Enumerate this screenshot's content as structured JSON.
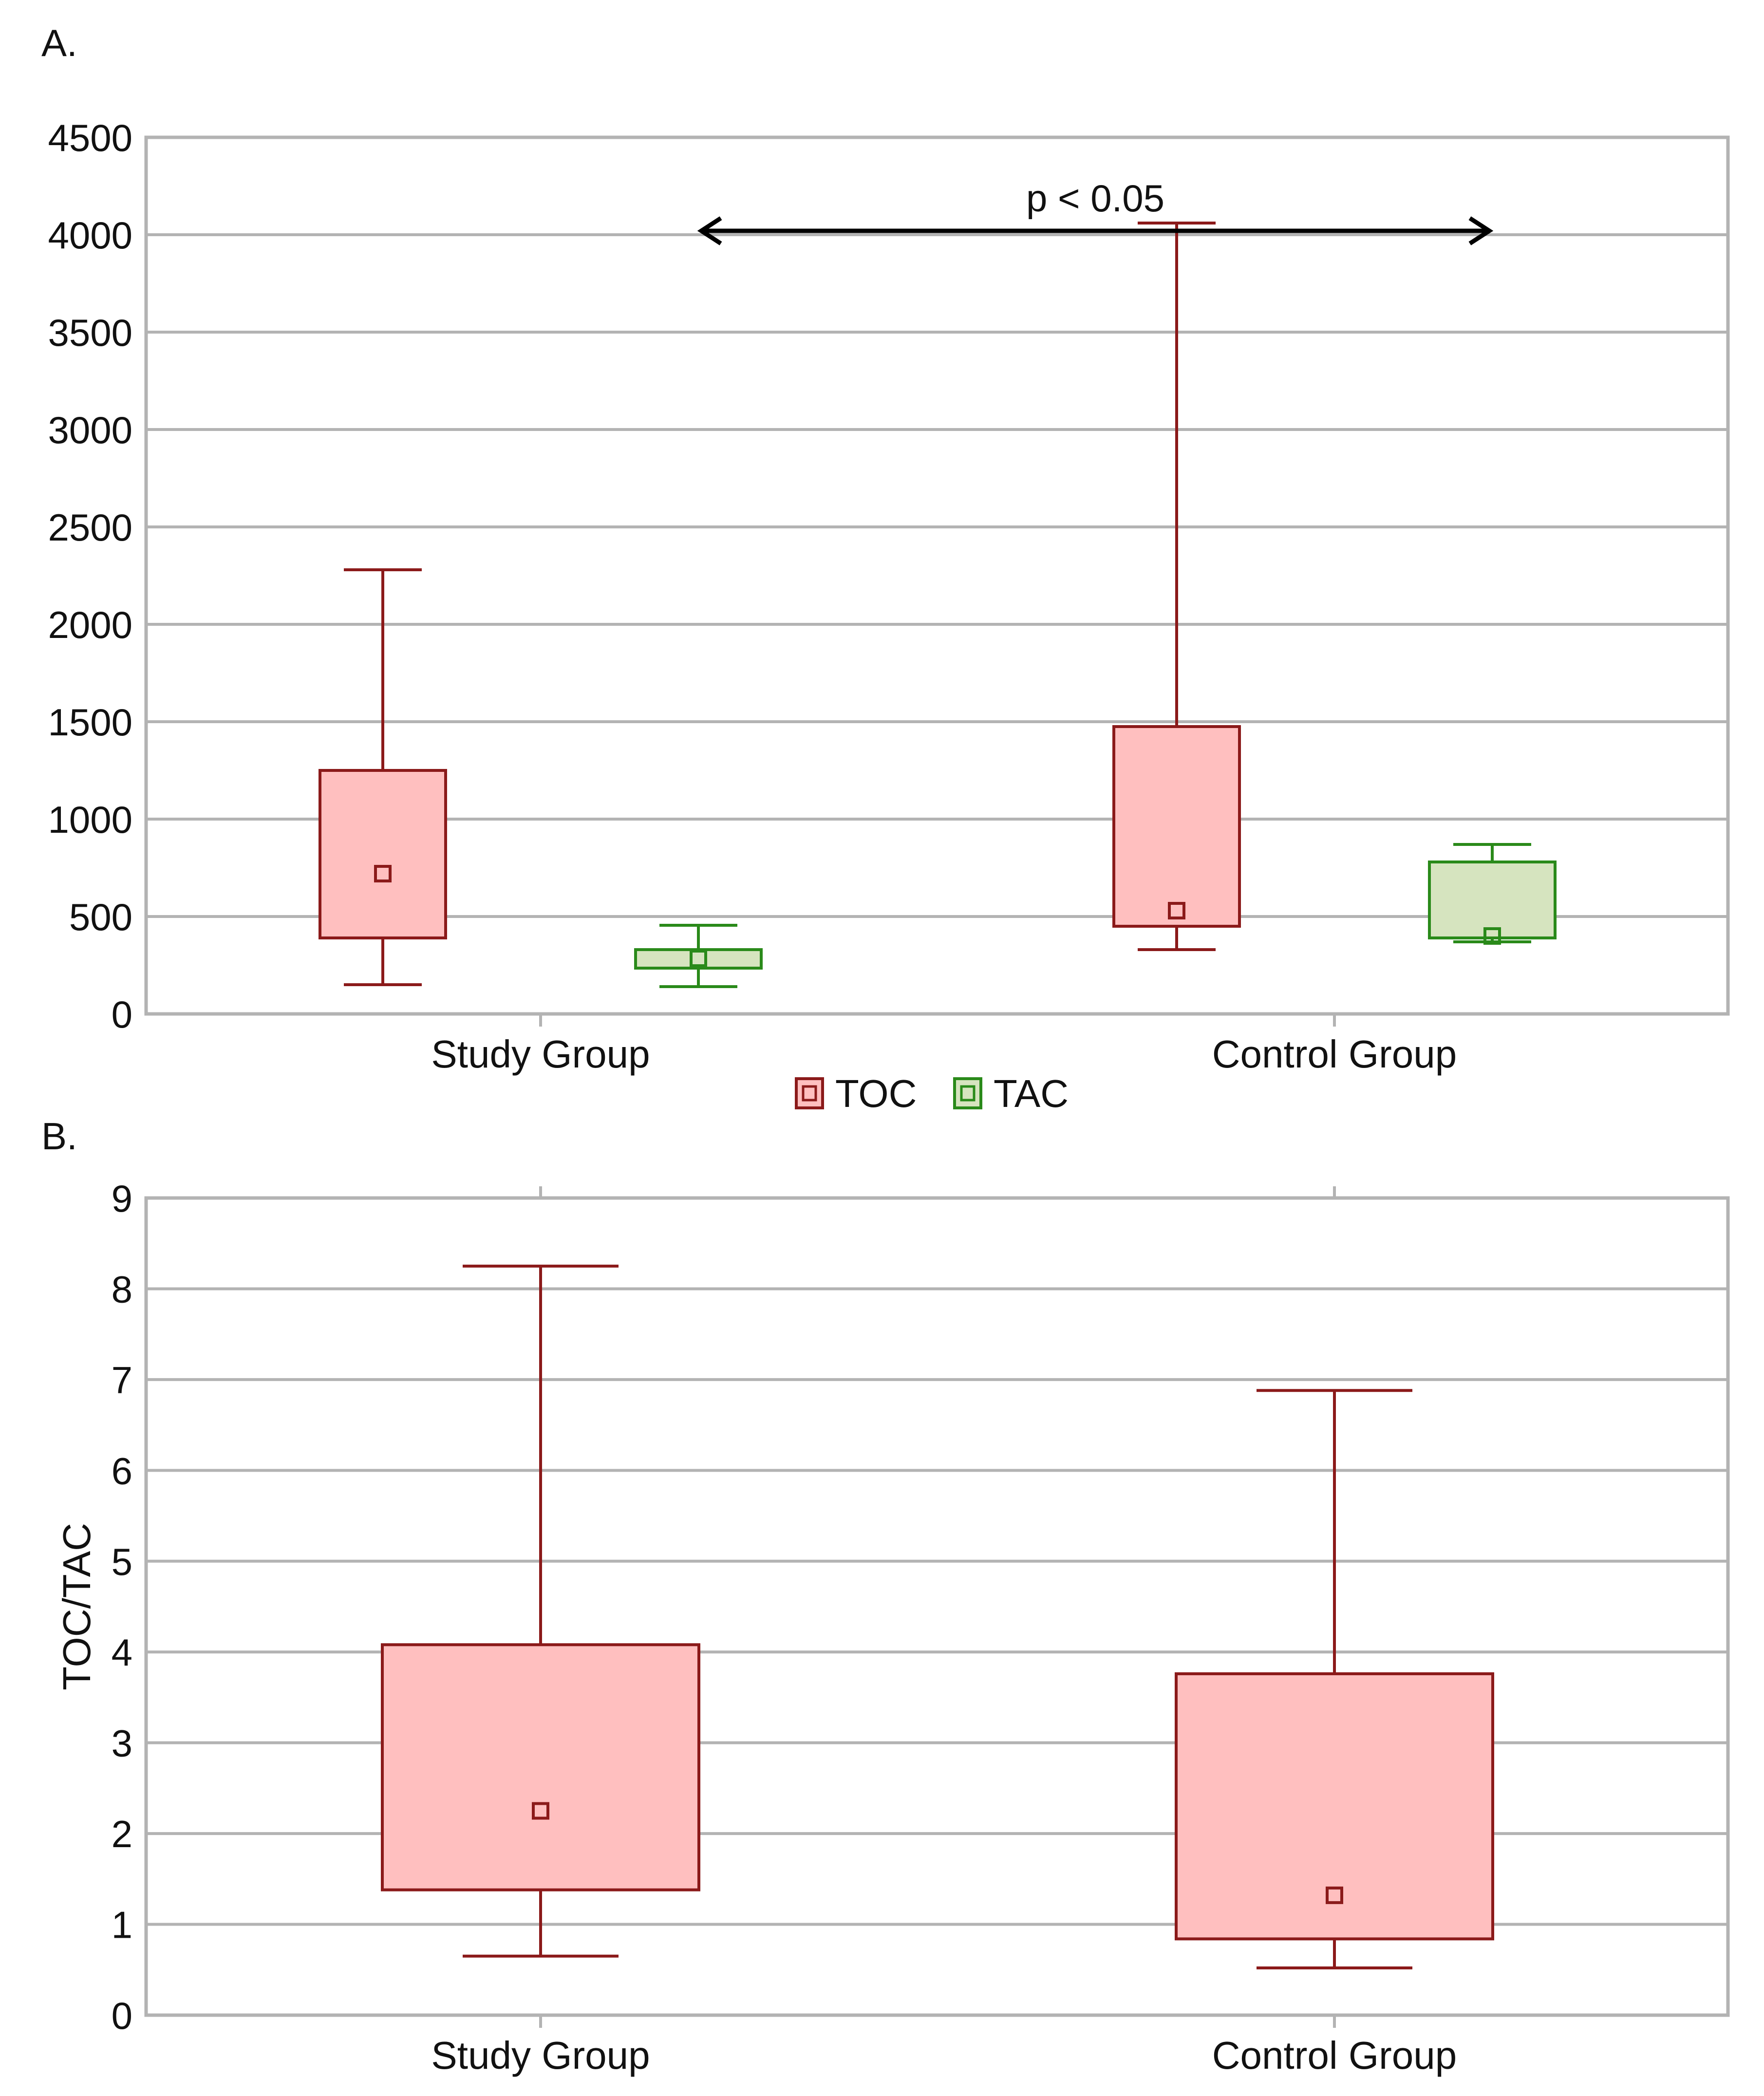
{
  "chart_data": [
    {
      "id": "A",
      "type": "box",
      "panel_label": "A.",
      "title": "",
      "xlabel": "",
      "ylabel": "",
      "ylim": [
        0,
        4500
      ],
      "yticks": [
        0,
        500,
        1000,
        1500,
        2000,
        2500,
        3000,
        3500,
        4000,
        4500
      ],
      "grid": true,
      "categories": [
        "Study Group",
        "Control Group"
      ],
      "series": [
        {
          "name": "TOC",
          "stroke": "#8b1a1a",
          "fill": "#ffbfbf",
          "boxes": [
            {
              "category": "Study Group",
              "whisker_low": 150,
              "q1": 390,
              "median": 720,
              "q3": 1250,
              "whisker_high": 2280
            },
            {
              "category": "Control Group",
              "whisker_low": 330,
              "q1": 450,
              "median": 530,
              "q3": 1475,
              "whisker_high": 4060
            }
          ]
        },
        {
          "name": "TAC",
          "stroke": "#2a8a1a",
          "fill": "#d6e4bf",
          "boxes": [
            {
              "category": "Study Group",
              "whisker_low": 140,
              "q1": 235,
              "median": 285,
              "q3": 330,
              "whisker_high": 455
            },
            {
              "category": "Control Group",
              "whisker_low": 370,
              "q1": 390,
              "median": 400,
              "q3": 780,
              "whisker_high": 870
            }
          ]
        }
      ],
      "legend": {
        "position": "bottom-center",
        "entries": [
          "TOC",
          "TAC"
        ]
      },
      "annotation": {
        "text": "p < 0.05",
        "from": "Study Group TAC",
        "to": "Control Group TAC",
        "at_value": 4100
      }
    },
    {
      "id": "B",
      "type": "box",
      "panel_label": "B.",
      "title": "",
      "xlabel": "",
      "ylabel": "TOC/TAC",
      "ylim": [
        0,
        9
      ],
      "yticks": [
        0,
        1,
        2,
        3,
        4,
        5,
        6,
        7,
        8,
        9
      ],
      "grid": true,
      "categories": [
        "Study Group",
        "Control Group"
      ],
      "series": [
        {
          "name": "TOC/TAC",
          "stroke": "#8b1a1a",
          "fill": "#ffbfbf",
          "boxes": [
            {
              "category": "Study Group",
              "whisker_low": 0.65,
              "q1": 1.38,
              "median": 2.25,
              "q3": 4.08,
              "whisker_high": 8.25
            },
            {
              "category": "Control Group",
              "whisker_low": 0.52,
              "q1": 0.84,
              "median": 1.32,
              "q3": 3.76,
              "whisker_high": 6.88
            }
          ]
        }
      ]
    }
  ]
}
